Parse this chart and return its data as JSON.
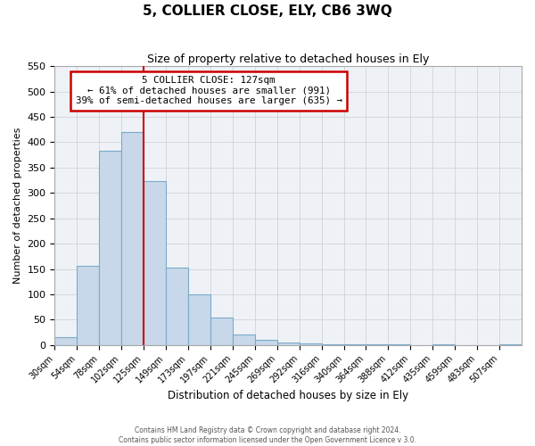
{
  "title": "5, COLLIER CLOSE, ELY, CB6 3WQ",
  "subtitle": "Size of property relative to detached houses in Ely",
  "xlabel": "Distribution of detached houses by size in Ely",
  "ylabel": "Number of detached properties",
  "footer_line1": "Contains HM Land Registry data © Crown copyright and database right 2024.",
  "footer_line2": "Contains public sector information licensed under the Open Government Licence v 3.0.",
  "bin_labels": [
    "30sqm",
    "54sqm",
    "78sqm",
    "102sqm",
    "125sqm",
    "149sqm",
    "173sqm",
    "197sqm",
    "221sqm",
    "245sqm",
    "269sqm",
    "292sqm",
    "316sqm",
    "340sqm",
    "364sqm",
    "388sqm",
    "412sqm",
    "435sqm",
    "459sqm",
    "483sqm",
    "507sqm"
  ],
  "bar_values": [
    15,
    157,
    383,
    420,
    323,
    153,
    100,
    55,
    20,
    10,
    5,
    3,
    2,
    1,
    1,
    1,
    0,
    1,
    0,
    0,
    1
  ],
  "bar_color": "#c8d8ea",
  "bar_edge_color": "#7aaac8",
  "vline_x_index": 4,
  "vline_color": "#cc0000",
  "annotation_text": "5 COLLIER CLOSE: 127sqm\n← 61% of detached houses are smaller (991)\n39% of semi-detached houses are larger (635) →",
  "annotation_box_color": "white",
  "annotation_box_edge_color": "#cc0000",
  "ylim": [
    0,
    550
  ],
  "yticks": [
    0,
    50,
    100,
    150,
    200,
    250,
    300,
    350,
    400,
    450,
    500,
    550
  ],
  "grid_color": "#cccccc",
  "bg_color": "#eef2f7",
  "bin_width": 24
}
